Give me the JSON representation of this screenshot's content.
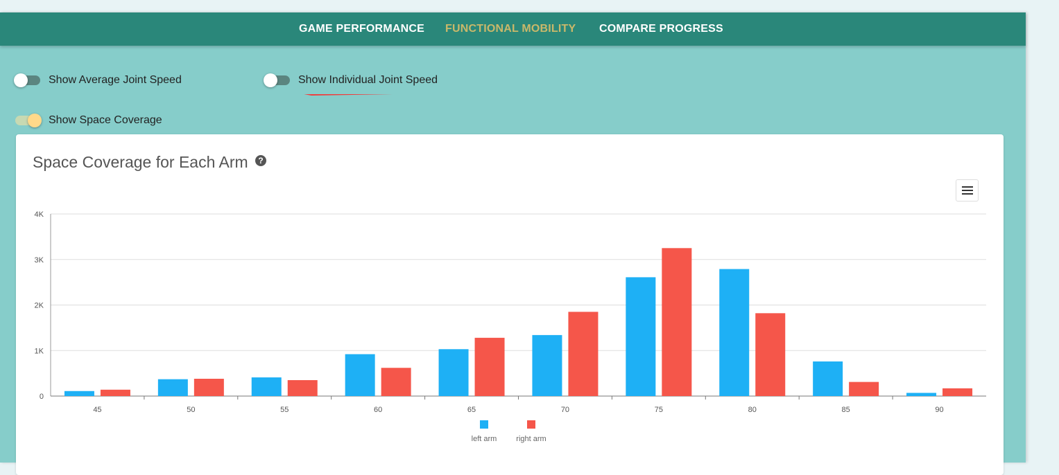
{
  "nav": {
    "tabs": [
      {
        "label": "GAME PERFORMANCE"
      },
      {
        "label": "FUNCTIONAL MOBILITY"
      },
      {
        "label": "COMPARE PROGRESS"
      }
    ]
  },
  "toggles": {
    "average_joint_speed": {
      "label": "Show Average Joint Speed",
      "on": false
    },
    "individual_joint_speed": {
      "label": "Show Individual Joint Speed",
      "on": false
    },
    "space_coverage": {
      "label": "Show Space Coverage",
      "on": true
    }
  },
  "colors": {
    "nav_bg": "#2a877a",
    "page_bg": "#86cdca",
    "active_tab": "#c9b86a",
    "left_arm": "#1eb0f5",
    "right_arm": "#f5564a",
    "annotation_arrow": "#f23a3a"
  },
  "card": {
    "title": "Space Coverage for Each Arm",
    "help_icon": "question-circle-icon",
    "menu_icon": "hamburger-menu-icon"
  },
  "chart_data": {
    "type": "bar",
    "title": "Space Coverage for Each Arm",
    "xlabel": "",
    "ylabel": "",
    "categories": [
      "45",
      "50",
      "55",
      "60",
      "65",
      "70",
      "75",
      "80",
      "85",
      "90"
    ],
    "series": [
      {
        "name": "left arm",
        "values": [
          110,
          370,
          410,
          920,
          1030,
          1340,
          2610,
          2790,
          760,
          70
        ]
      },
      {
        "name": "right arm",
        "values": [
          140,
          380,
          350,
          620,
          1280,
          1850,
          3250,
          1820,
          310,
          170
        ]
      }
    ],
    "yticks": [
      "0",
      "1K",
      "2K",
      "3K",
      "4K"
    ],
    "ylim": [
      0,
      4000
    ],
    "grid": true,
    "legend": "bottom-center"
  }
}
